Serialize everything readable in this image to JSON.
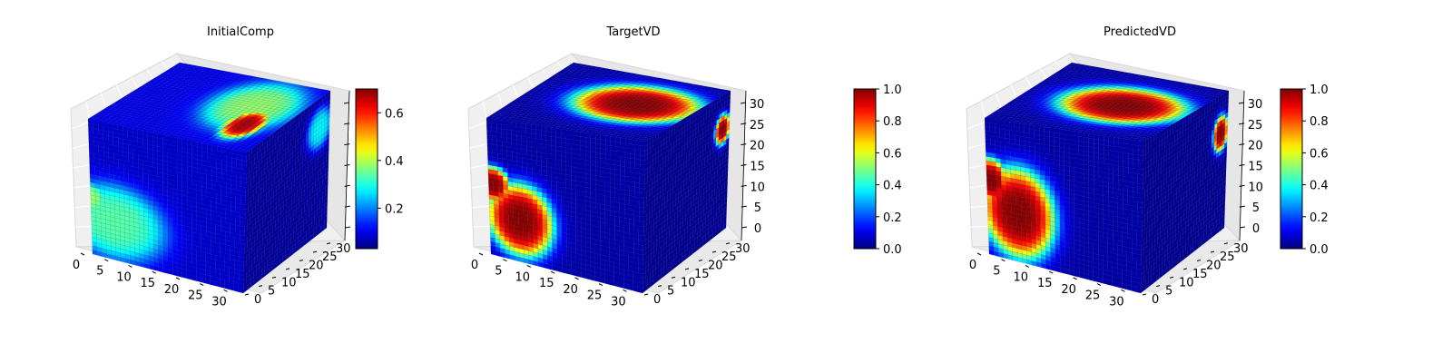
{
  "chart_data": [
    {
      "type": "heatmap",
      "plot_kind": "3d-voxel-cube",
      "title": "InitialComp",
      "x_ticks": [
        "0",
        "5",
        "10",
        "15",
        "20",
        "25",
        "30"
      ],
      "y_ticks": [
        "0",
        "5",
        "10",
        "15",
        "20",
        "25",
        "30"
      ],
      "z_ticks": [],
      "xlim": [
        0,
        32
      ],
      "ylim": [
        0,
        32
      ],
      "zlim": [
        0,
        32
      ],
      "colormap": "jet",
      "colorbar": {
        "ticks": [
          "0.2",
          "0.4",
          "0.6"
        ],
        "tick_values": [
          0.2,
          0.4,
          0.6
        ],
        "range": [
          0.03,
          0.7
        ]
      },
      "faces": {
        "front": {
          "background": 0.08,
          "blobs": [
            {
              "u": 0.15,
              "v": 0.28,
              "rx": 0.32,
              "ry": 0.26,
              "value": 0.34
            },
            {
              "u": 0.0,
              "v": 0.42,
              "rx": 0.1,
              "ry": 0.1,
              "value": 0.38
            }
          ]
        },
        "top": {
          "background": 0.1,
          "blobs": [
            {
              "u": 0.72,
              "v": 0.6,
              "rx": 0.25,
              "ry": 0.35,
              "value": 0.38
            },
            {
              "u": 0.8,
              "v": 0.35,
              "rx": 0.1,
              "ry": 0.2,
              "value": 0.68
            }
          ]
        },
        "right": {
          "background": 0.05,
          "blobs": [
            {
              "u": 0.88,
              "v": 0.78,
              "rx": 0.14,
              "ry": 0.14,
              "value": 0.28
            }
          ]
        }
      }
    },
    {
      "type": "heatmap",
      "plot_kind": "3d-voxel-cube",
      "title": "TargetVD",
      "x_ticks": [
        "0",
        "5",
        "10",
        "15",
        "20",
        "25",
        "30"
      ],
      "y_ticks": [
        "0",
        "5",
        "10",
        "15",
        "20",
        "25",
        "30"
      ],
      "z_ticks": [
        "0",
        "5",
        "10",
        "15",
        "20",
        "25",
        "30"
      ],
      "xlim": [
        0,
        32
      ],
      "ylim": [
        0,
        32
      ],
      "zlim": [
        0,
        32
      ],
      "colormap": "jet",
      "colorbar": {
        "ticks": [
          "0.0",
          "0.2",
          "0.4",
          "0.6",
          "0.8",
          "1.0"
        ],
        "tick_values": [
          0,
          0.2,
          0.4,
          0.6,
          0.8,
          1.0
        ],
        "range": [
          0,
          1
        ]
      },
      "faces": {
        "front": {
          "background": 0.04,
          "blobs": [
            {
              "u": 0.2,
              "v": 0.3,
              "rx": 0.2,
              "ry": 0.24,
              "value": 1.0
            },
            {
              "u": 0.03,
              "v": 0.52,
              "rx": 0.1,
              "ry": 0.12,
              "value": 1.0
            }
          ]
        },
        "top": {
          "background": 0.04,
          "blobs": [
            {
              "u": 0.65,
              "v": 0.55,
              "rx": 0.35,
              "ry": 0.28,
              "value": 1.0
            }
          ]
        },
        "right": {
          "background": 0.02,
          "blobs": [
            {
              "u": 0.92,
              "v": 0.75,
              "rx": 0.08,
              "ry": 0.1,
              "value": 1.0
            }
          ]
        }
      }
    },
    {
      "type": "heatmap",
      "plot_kind": "3d-voxel-cube",
      "title": "PredictedVD",
      "x_ticks": [
        "0",
        "5",
        "10",
        "15",
        "20",
        "25",
        "30"
      ],
      "y_ticks": [
        "0",
        "5",
        "10",
        "15",
        "20",
        "25",
        "30"
      ],
      "z_ticks": [
        "0",
        "5",
        "10",
        "15",
        "20",
        "25",
        "30"
      ],
      "xlim": [
        0,
        32
      ],
      "ylim": [
        0,
        32
      ],
      "zlim": [
        0,
        32
      ],
      "colormap": "jet",
      "colorbar": {
        "ticks": [
          "0.0",
          "0.2",
          "0.4",
          "0.6",
          "0.8",
          "1.0"
        ],
        "tick_values": [
          0,
          0.2,
          0.4,
          0.6,
          0.8,
          1.0
        ],
        "range": [
          0,
          1
        ]
      },
      "faces": {
        "front": {
          "background": 0.04,
          "blobs": [
            {
              "u": 0.2,
              "v": 0.35,
              "rx": 0.22,
              "ry": 0.3,
              "value": 1.0
            },
            {
              "u": 0.03,
              "v": 0.55,
              "rx": 0.1,
              "ry": 0.15,
              "value": 1.0
            }
          ]
        },
        "top": {
          "background": 0.04,
          "blobs": [
            {
              "u": 0.6,
              "v": 0.5,
              "rx": 0.35,
              "ry": 0.27,
              "value": 1.0
            }
          ]
        },
        "right": {
          "background": 0.02,
          "blobs": [
            {
              "u": 0.92,
              "v": 0.72,
              "rx": 0.08,
              "ry": 0.12,
              "value": 1.0
            }
          ]
        }
      }
    }
  ]
}
